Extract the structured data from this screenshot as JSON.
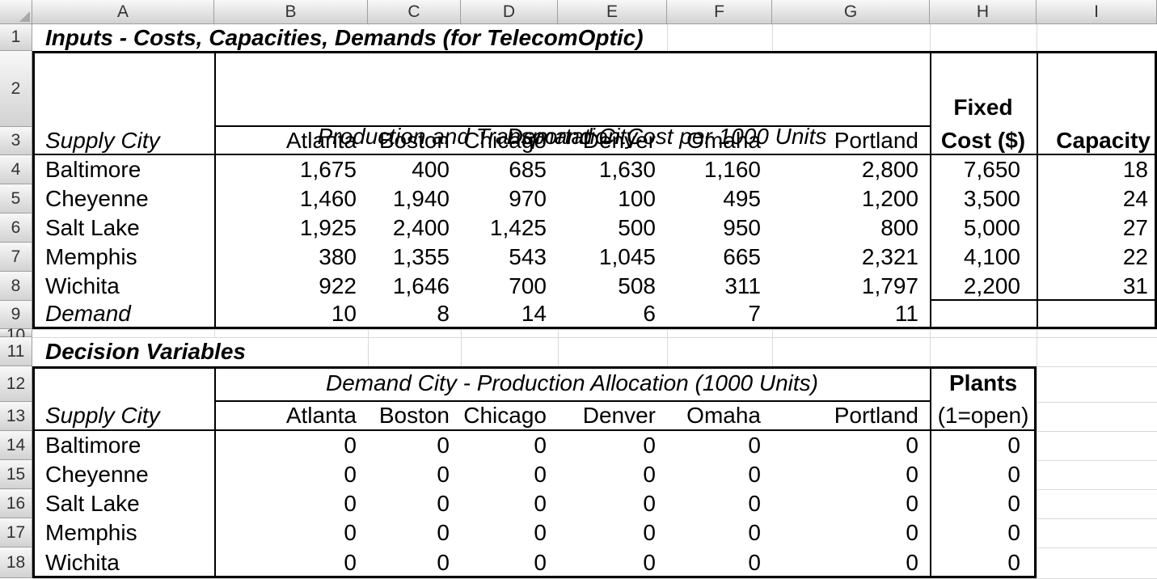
{
  "colors": {
    "sheet_bg": "#ffffff",
    "header_bg_top": "#f8f8f8",
    "header_bg_bottom": "#d2d2d2",
    "header_border": "#9f9f9f",
    "header_text": "#333333",
    "grid_line": "#d9d9d9",
    "table_border": "#000000",
    "cell_text": "#000000"
  },
  "icons": {
    "corner_icon": "select-all-triangle"
  },
  "column_headers": [
    "A",
    "B",
    "C",
    "D",
    "E",
    "F",
    "G",
    "H",
    "I"
  ],
  "row_headers": [
    "1",
    "2",
    "3",
    "4",
    "5",
    "6",
    "7",
    "8",
    "9",
    "10",
    "11",
    "12",
    "13",
    "14",
    "15",
    "16",
    "17",
    "18"
  ],
  "title_row": "Inputs - Costs, Capacities, Demands (for TelecomOptic)",
  "table1": {
    "merged_header_line1": "Demand City",
    "merged_header_line2": "Production and Transportation Cost per 1000 Units",
    "fixed_header_line1": "Fixed",
    "fixed_header_line2": "Cost ($)",
    "capacity_header": "Capacity",
    "supply_city_label": "Supply City",
    "demand_cities": [
      "Atlanta",
      "Boston",
      "Chicago",
      "Denver",
      "Omaha",
      "Portland"
    ],
    "rows": [
      {
        "city": "Baltimore",
        "costs": [
          "1,675",
          "400",
          "685",
          "1,630",
          "1,160",
          "2,800"
        ],
        "fixed": "7,650",
        "capacity": "18"
      },
      {
        "city": "Cheyenne",
        "costs": [
          "1,460",
          "1,940",
          "970",
          "100",
          "495",
          "1,200"
        ],
        "fixed": "3,500",
        "capacity": "24"
      },
      {
        "city": "Salt Lake",
        "costs": [
          "1,925",
          "2,400",
          "1,425",
          "500",
          "950",
          "800"
        ],
        "fixed": "5,000",
        "capacity": "27"
      },
      {
        "city": "Memphis",
        "costs": [
          "380",
          "1,355",
          "543",
          "1,045",
          "665",
          "2,321"
        ],
        "fixed": "4,100",
        "capacity": "22"
      },
      {
        "city": "Wichita",
        "costs": [
          "922",
          "1,646",
          "700",
          "508",
          "311",
          "1,797"
        ],
        "fixed": "2,200",
        "capacity": "31"
      }
    ],
    "demand_row": {
      "label": "Demand",
      "values": [
        "10",
        "8",
        "14",
        "6",
        "7",
        "11"
      ]
    }
  },
  "section2_title": "Decision Variables",
  "table2": {
    "merged_header": "Demand City - Production Allocation (1000 Units)",
    "plants_header_line1": "Plants",
    "plants_header_line2": "(1=open)",
    "supply_city_label": "Supply City",
    "demand_cities": [
      "Atlanta",
      "Boston",
      "Chicago",
      "Denver",
      "Omaha",
      "Portland"
    ],
    "rows": [
      {
        "city": "Baltimore",
        "alloc": [
          "0",
          "0",
          "0",
          "0",
          "0",
          "0"
        ],
        "open": "0"
      },
      {
        "city": "Cheyenne",
        "alloc": [
          "0",
          "0",
          "0",
          "0",
          "0",
          "0"
        ],
        "open": "0"
      },
      {
        "city": "Salt Lake",
        "alloc": [
          "0",
          "0",
          "0",
          "0",
          "0",
          "0"
        ],
        "open": "0"
      },
      {
        "city": "Memphis",
        "alloc": [
          "0",
          "0",
          "0",
          "0",
          "0",
          "0"
        ],
        "open": "0"
      },
      {
        "city": "Wichita",
        "alloc": [
          "0",
          "0",
          "0",
          "0",
          "0",
          "0"
        ],
        "open": "0"
      }
    ]
  }
}
